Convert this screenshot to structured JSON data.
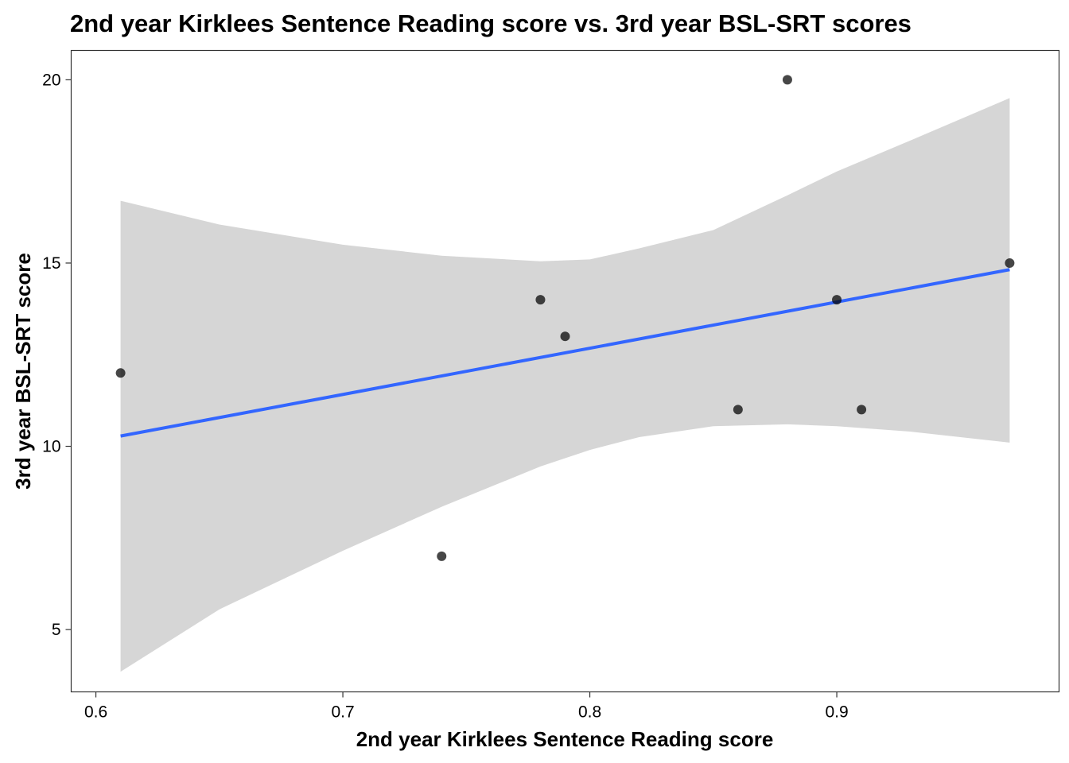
{
  "chart_data": {
    "type": "scatter",
    "title": "2nd year Kirklees Sentence Reading score vs. 3rd year BSL-SRT scores",
    "xlabel": "2nd year Kirklees Sentence Reading score",
    "ylabel": "3rd year BSL-SRT score",
    "xlim": [
      0.59,
      0.99
    ],
    "ylim": [
      3.3,
      20.8
    ],
    "x_ticks": [
      0.6,
      0.7,
      0.8,
      0.9
    ],
    "x_tick_labels": [
      "0.6",
      "0.7",
      "0.8",
      "0.9"
    ],
    "y_ticks": [
      5,
      10,
      15,
      20
    ],
    "y_tick_labels": [
      "5",
      "10",
      "15",
      "20"
    ],
    "grid": false,
    "legend": "none",
    "points": [
      {
        "x": 0.61,
        "y": 12
      },
      {
        "x": 0.74,
        "y": 7
      },
      {
        "x": 0.78,
        "y": 14
      },
      {
        "x": 0.79,
        "y": 13
      },
      {
        "x": 0.86,
        "y": 11
      },
      {
        "x": 0.88,
        "y": 20
      },
      {
        "x": 0.9,
        "y": 14
      },
      {
        "x": 0.91,
        "y": 11
      },
      {
        "x": 0.97,
        "y": 15
      }
    ],
    "regression": {
      "method": "lm",
      "x": [
        0.61,
        0.97
      ],
      "y": [
        10.28,
        14.82
      ]
    },
    "confidence_band": {
      "x": [
        0.61,
        0.65,
        0.7,
        0.74,
        0.78,
        0.8,
        0.82,
        0.85,
        0.88,
        0.9,
        0.93,
        0.97
      ],
      "lower": [
        3.85,
        5.55,
        7.15,
        8.35,
        9.45,
        9.9,
        10.25,
        10.55,
        10.6,
        10.55,
        10.4,
        10.1
      ],
      "upper": [
        16.7,
        16.05,
        15.5,
        15.2,
        15.05,
        15.1,
        15.4,
        15.9,
        16.85,
        17.5,
        18.35,
        19.5
      ]
    },
    "colors": {
      "points": "#000000",
      "line": "#3366FF",
      "band": "#d6d6d6",
      "panel_border": "#333333"
    }
  }
}
